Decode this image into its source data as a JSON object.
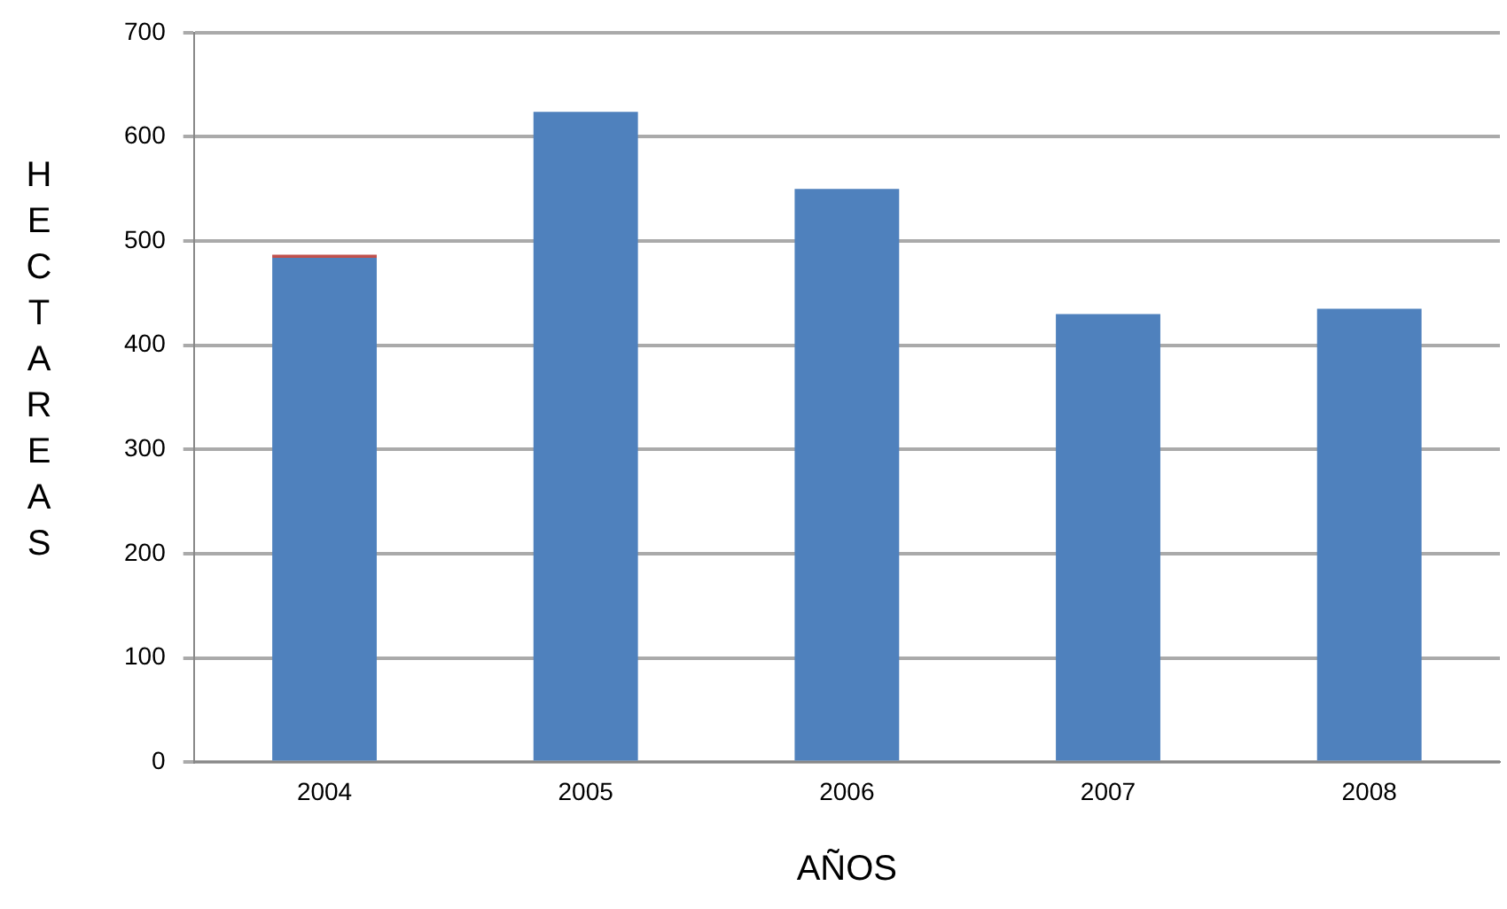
{
  "chart_data": {
    "type": "bar",
    "xlabel": "AÑOS",
    "ylabel": "HECTAREAS",
    "categories": [
      "2004",
      "2005",
      "2006",
      "2007",
      "2008"
    ],
    "stacked": true,
    "series": [
      {
        "color": "#4f81bd",
        "values": [
          484,
          624,
          550,
          430,
          435
        ]
      },
      {
        "color": "#c0504d",
        "values": [
          3,
          0,
          0,
          0,
          0
        ]
      }
    ],
    "ylim": [
      0,
      700
    ],
    "yticks": [
      0,
      100,
      200,
      300,
      400,
      500,
      600,
      700
    ],
    "grid": "y",
    "legend": false
  }
}
